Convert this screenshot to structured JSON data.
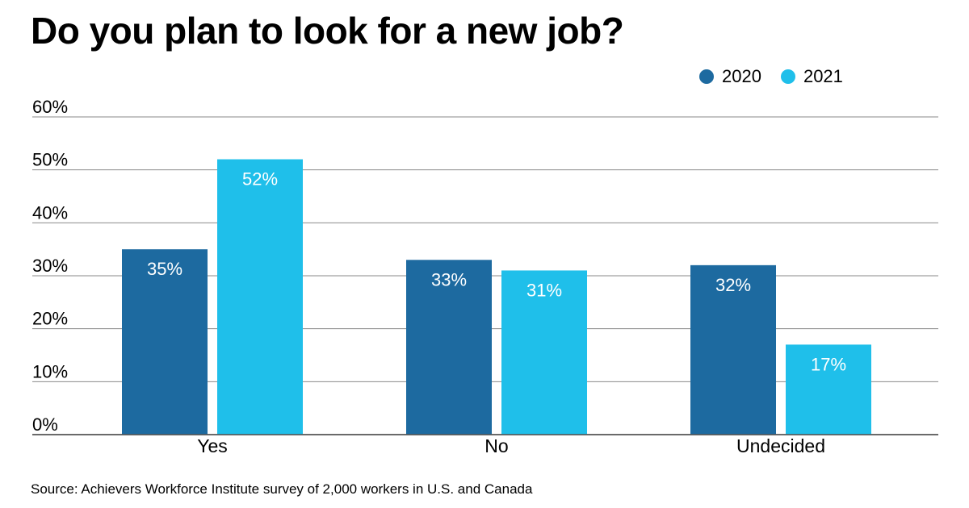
{
  "chart_data": {
    "type": "bar",
    "title": "Do you plan to look for a new job?",
    "categories": [
      "Yes",
      "No",
      "Undecided"
    ],
    "series": [
      {
        "name": "2020",
        "values": [
          35,
          33,
          32
        ],
        "color": "#1d6aa0"
      },
      {
        "name": "2021",
        "values": [
          52,
          31,
          17
        ],
        "color": "#1fbfea"
      }
    ],
    "ylim": [
      0,
      60
    ],
    "yticks": [
      0,
      10,
      20,
      30,
      40,
      50,
      60
    ],
    "ytick_suffix": "%",
    "value_label_suffix": "%",
    "grid": true,
    "legend_position": "top-right",
    "xlabel": "",
    "ylabel": ""
  },
  "source": "Source: Achievers Workforce Institute survey of 2,000 workers in U.S. and Canada"
}
